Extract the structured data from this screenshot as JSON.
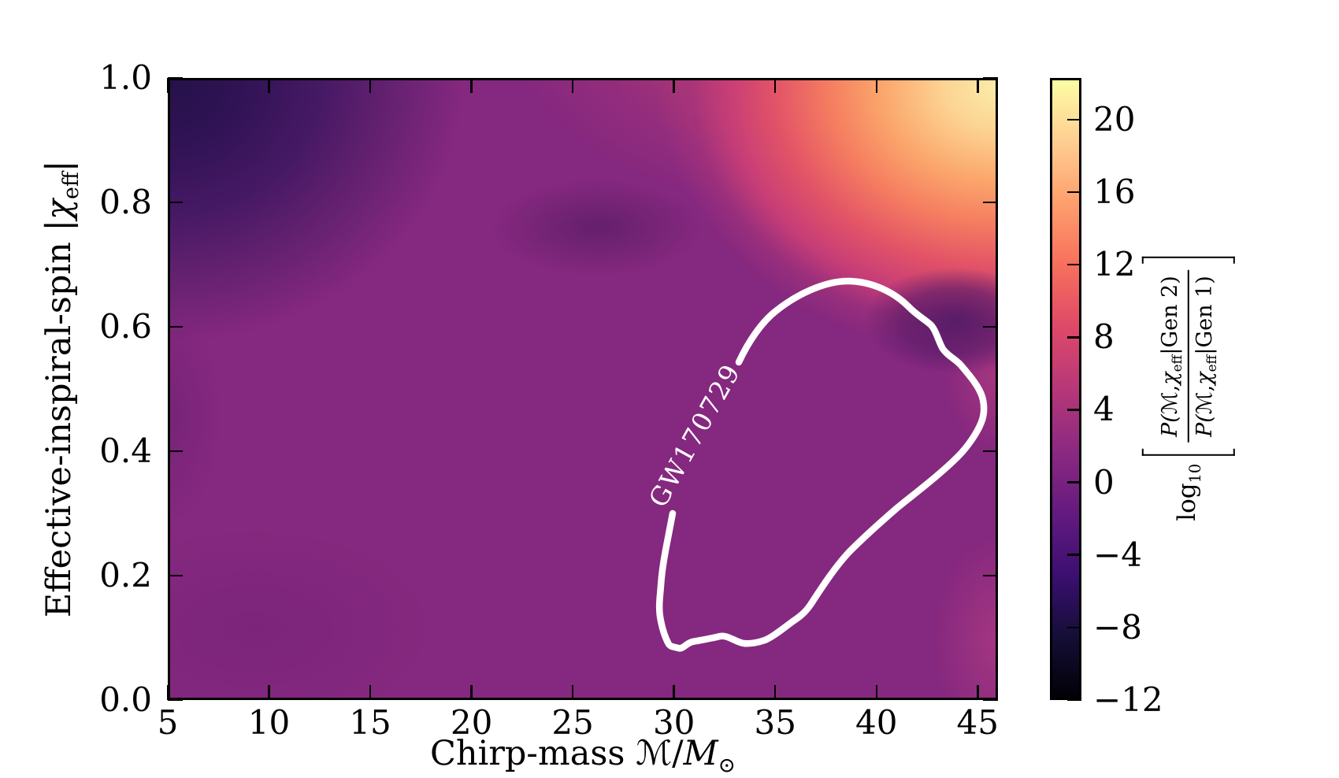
{
  "figure": {
    "background": "#ffffff",
    "accent_contour_color": "#ffffff",
    "frame_color": "#000000"
  },
  "xlabel": {
    "prefix": "Chirp-mass ",
    "mchirp": "ℳ",
    "slash": "/",
    "mass": "M",
    "sun_sub": "⊙"
  },
  "ylabel": {
    "prefix": "Effective-inspiral-spin ",
    "bar_open": "|",
    "chi": "χ",
    "chi_sub": "eff",
    "bar_close": "|"
  },
  "colorbar_label": {
    "log_base": "log",
    "log_sub": "10",
    "numerator": {
      "p": "P(",
      "m": "ℳ",
      "comma": ",",
      "chi": "χ",
      "chi_sub": "eff",
      "bar": "|",
      "gen": "Gen 2",
      "close": ")"
    },
    "denominator": {
      "p": "P(",
      "m": "ℳ",
      "comma": ",",
      "chi": "χ",
      "chi_sub": "eff",
      "bar": "|",
      "gen": "Gen 1",
      "close": ")"
    }
  },
  "chart_data": {
    "type": "heatmap",
    "subtype": "filled-contour field with overlaid credible-region contour",
    "title": "",
    "xlabel": "Chirp-mass ℳ/M⊙",
    "ylabel": "Effective-inspiral-spin |χ_eff|",
    "xlim": [
      5,
      46
    ],
    "ylim": [
      0.0,
      1.0
    ],
    "grid": false,
    "colormap": "magma",
    "x_ticks": [
      {
        "v": 5,
        "label": "5"
      },
      {
        "v": 10,
        "label": "10"
      },
      {
        "v": 15,
        "label": "15"
      },
      {
        "v": 20,
        "label": "20"
      },
      {
        "v": 25,
        "label": "25"
      },
      {
        "v": 30,
        "label": "30"
      },
      {
        "v": 35,
        "label": "35"
      },
      {
        "v": 40,
        "label": "40"
      },
      {
        "v": 45,
        "label": "45"
      }
    ],
    "y_ticks": [
      {
        "v": 0.0,
        "label": "0.0"
      },
      {
        "v": 0.2,
        "label": "0.2"
      },
      {
        "v": 0.4,
        "label": "0.4"
      },
      {
        "v": 0.6,
        "label": "0.6"
      },
      {
        "v": 0.8,
        "label": "0.8"
      },
      {
        "v": 1.0,
        "label": "1.0"
      }
    ],
    "colorbar": {
      "label": "log10[ P(ℳ,χ_eff|Gen 2) / P(ℳ,χ_eff|Gen 1) ]",
      "vmin": -12,
      "vmax": 22.3,
      "ticks": [
        {
          "v": 20,
          "label": "20"
        },
        {
          "v": 16,
          "label": "16"
        },
        {
          "v": 12,
          "label": "12"
        },
        {
          "v": 8,
          "label": "8"
        },
        {
          "v": 4,
          "label": "4"
        },
        {
          "v": 0,
          "label": "0"
        },
        {
          "v": -4,
          "label": "−4"
        },
        {
          "v": -8,
          "label": "−8"
        },
        {
          "v": -12,
          "label": "−12"
        }
      ],
      "gradient": [
        {
          "pos": 0.0,
          "color": "#000004"
        },
        {
          "pos": 0.1,
          "color": "#140e36"
        },
        {
          "pos": 0.2,
          "color": "#3b0f70"
        },
        {
          "pos": 0.3,
          "color": "#641a80"
        },
        {
          "pos": 0.4,
          "color": "#8c2981"
        },
        {
          "pos": 0.5,
          "color": "#b73779"
        },
        {
          "pos": 0.6,
          "color": "#de4968"
        },
        {
          "pos": 0.7,
          "color": "#f7705c"
        },
        {
          "pos": 0.8,
          "color": "#fe9f6d"
        },
        {
          "pos": 0.9,
          "color": "#fecf92"
        },
        {
          "pos": 1.0,
          "color": "#fcffa4"
        }
      ]
    },
    "field_features": [
      {
        "region": "uniform background field",
        "x": 18,
        "y": 0.3,
        "value": 1.5
      },
      {
        "region": "dark low-ratio blob, top-left corner",
        "x": 5.5,
        "y": 0.98,
        "value": -7
      },
      {
        "region": "bright high-ratio peak, top-right corner",
        "x": 45.7,
        "y": 0.98,
        "value": 22
      },
      {
        "region": "warm ridge along upper-right edge",
        "x": 38,
        "y": 0.95,
        "value": 10
      },
      {
        "region": "local low right of contour",
        "x": 43.6,
        "y": 0.61,
        "value": -2
      },
      {
        "region": "local low, top-centre",
        "x": 25,
        "y": 0.77,
        "value": 0
      },
      {
        "region": "mild high at right edge",
        "x": 46,
        "y": 0.52,
        "value": 4
      },
      {
        "region": "mild high near bottom-right edge",
        "x": 46,
        "y": 0.09,
        "value": 4
      }
    ],
    "contour": {
      "label": "GW170729",
      "description": "white credible-region contour of GW170729",
      "line_color": "#ffffff",
      "vertices_x": [
        33.2,
        35.0,
        38.7,
        41.5,
        43.2,
        44.2,
        45.2,
        45.3,
        44.0,
        41.1,
        38.7,
        36.8,
        34.5,
        33.4,
        32.2,
        31.0,
        30.3,
        29.4,
        29.5,
        29.9
      ],
      "vertices_y": [
        0.543,
        0.625,
        0.673,
        0.634,
        0.565,
        0.537,
        0.487,
        0.467,
        0.391,
        0.309,
        0.239,
        0.153,
        0.097,
        0.091,
        0.103,
        0.094,
        0.084,
        0.135,
        0.182,
        0.3
      ]
    }
  }
}
